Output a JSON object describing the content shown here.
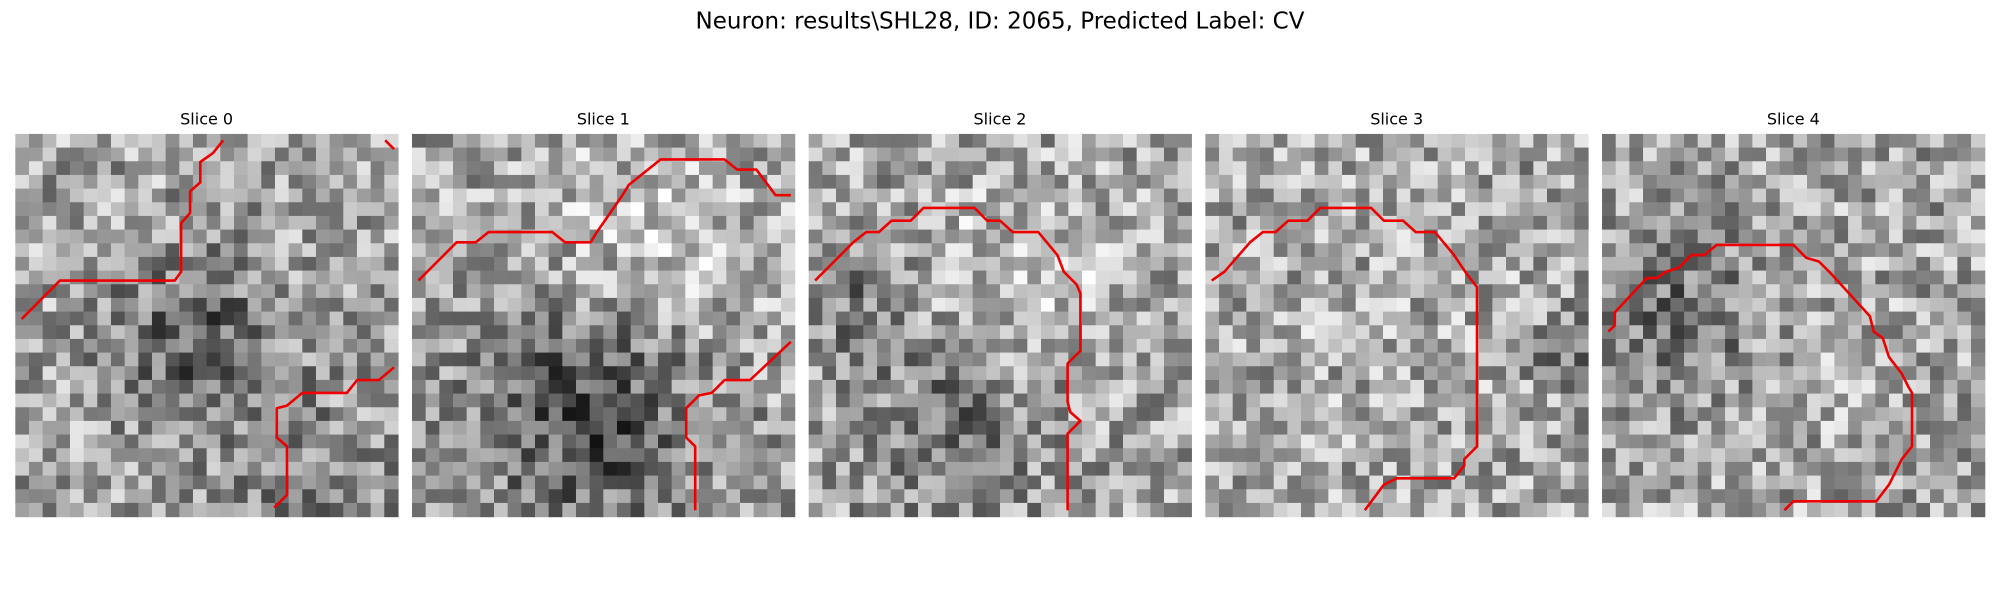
{
  "header": {
    "title": "Neuron: results\\SHL28, ID: 2065, Predicted Label: CV"
  },
  "panels": [
    {
      "title": "Slice 0"
    },
    {
      "title": "Slice 1"
    },
    {
      "title": "Slice 2"
    },
    {
      "title": "Slice 3"
    },
    {
      "title": "Slice 4"
    }
  ]
}
